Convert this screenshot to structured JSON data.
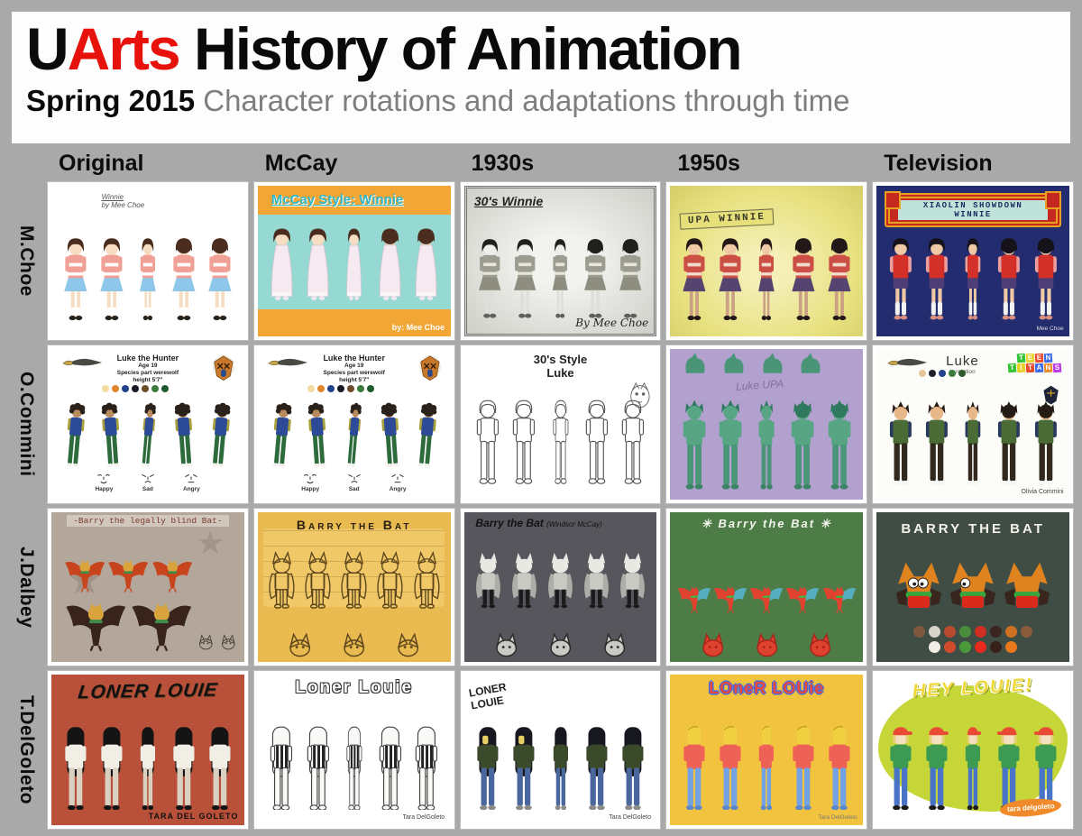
{
  "header": {
    "title_u": "U",
    "title_arts": "Arts",
    "title_rest": " History of Animation",
    "subtitle_term": "Spring 2015",
    "subtitle_rest": " Character rotations and adaptations through time",
    "colors": {
      "accent_red": "#e8120c",
      "subtitle_gray": "#7e7e7e",
      "frame_gray": "#a9a9a9"
    }
  },
  "columns": [
    "Original",
    "McCay",
    "1930s",
    "1950s",
    "Television"
  ],
  "rows": [
    "M.Choe",
    "O.Commini",
    "J.Dalbey",
    "T.DelGoleto"
  ],
  "cells": [
    {
      "id": "choe-original",
      "bg": "#ffffff",
      "layout": "plain",
      "title": {
        "text": "Winnie",
        "style": "hand-tiny",
        "sub": "by Mee Choe"
      },
      "figures": {
        "shape": "person",
        "count": 5,
        "hairStyle": "bob",
        "colors": {
          "hair": "#4a2d1f",
          "skin": "#f6dcc0",
          "top": "#f0a094",
          "stripe": "#ffffff",
          "bottom": "#8ec7ea",
          "bottomType": "skirt",
          "legs": "#f6dcc0",
          "socks": "#ffffff",
          "shoes": "#26221e"
        }
      }
    },
    {
      "id": "choe-mccay",
      "bg": "#f2a636",
      "band": "#96d8d2",
      "layout": "mccayband",
      "title": {
        "text": "McCay Style: Winnie",
        "style": "mccay"
      },
      "signature": {
        "text": "by: Mee Choe",
        "style": "sig-white"
      },
      "figures": {
        "shape": "person",
        "count": 5,
        "hairStyle": "bob",
        "colors": {
          "hair": "#4a2d1f",
          "skin": "#f6dcc0",
          "top": "#f4eaf0",
          "bottomType": "gown",
          "shoes": "#efe7ee"
        }
      }
    },
    {
      "id": "choe-1930s",
      "bg": "#e4e2dc",
      "layout": "vintage",
      "title": {
        "text": "30's Winnie",
        "style": "hand30"
      },
      "signature": {
        "text": "By Mee Choe",
        "style": "sig-script"
      },
      "figures": {
        "shape": "person",
        "count": 5,
        "hairStyle": "bob",
        "colors": {
          "hair": "#20201c",
          "skin": "#efeee8",
          "top": "#9c9c90",
          "stripe": "#e6e6de",
          "bottom": "#8e8e80",
          "bottomType": "skirt",
          "legs": "#dededa",
          "shoes": "#60605a"
        }
      }
    },
    {
      "id": "choe-1950s",
      "bg": "#e8e18a",
      "layout": "upa",
      "banner": {
        "text": "UPA WINNIE",
        "style": "upa"
      },
      "figures": {
        "shape": "person",
        "count": 5,
        "hairStyle": "bob",
        "colors": {
          "hair": "#221818",
          "skin": "#efc9a6",
          "top": "#cc4f45",
          "stripe": "#f2dccc",
          "bottom": "#564470",
          "bottomType": "skirt",
          "legs": "#caa184",
          "shoes": "#221818"
        }
      }
    },
    {
      "id": "choe-tv",
      "bg": "#222c6e",
      "layout": "tvswirl",
      "banner": {
        "text": "XIAOLIN SHOWDOWN WINNIE",
        "style": "xiaolin"
      },
      "signature": {
        "text": "Mee Choe",
        "style": "sig-white-tiny"
      },
      "figures": {
        "shape": "person",
        "count": 5,
        "hairStyle": "bob",
        "colors": {
          "hair": "#16121a",
          "skin": "#efc9a6",
          "top": "#d23028",
          "sleeves": "#eb9f9f",
          "bottom": "#4e3e78",
          "bottomType": "shorts",
          "legs": "#efc9a6",
          "socks": "#f2f2f2",
          "shoes": "#d88f80"
        }
      }
    },
    {
      "id": "commini-original",
      "bg": "#ffffff",
      "layout": "luke",
      "header_block": {
        "title": "Luke the Hunter",
        "lines": [
          "Age 19",
          "Species part werewolf",
          "height 5'7\""
        ]
      },
      "corner_icons": [
        "knife-icon",
        "wolf-mask-icon"
      ],
      "palette": [
        "#f3dca2",
        "#e0862c",
        "#24418c",
        "#181826",
        "#6f4c2c",
        "#3d7c3d",
        "#1e5a2e"
      ],
      "palette_pos": "pal-luke",
      "faces": {
        "labels": [
          "Happy",
          "Sad",
          "Angry"
        ]
      },
      "figures": {
        "shape": "person",
        "count": 5,
        "hairStyle": "curly",
        "pose": "crouch",
        "colors": {
          "hair": "#2a211a",
          "skin": "#b98a5e",
          "top": "#2c4a96",
          "sleeves": "#a8a03c",
          "bottom": "#2e6b3c",
          "bottomType": "pants",
          "shoes": "#f2f2ee"
        }
      }
    },
    {
      "id": "commini-mccay",
      "bg": "#ffffff",
      "layout": "luke",
      "header_block": {
        "title": "Luke the Hunter",
        "lines": [
          "Age 19",
          "Species part werewolf",
          "height 5'7\""
        ]
      },
      "corner_icons": [
        "knife-icon",
        "wolf-mask-icon"
      ],
      "palette": [
        "#f3dca2",
        "#e0862c",
        "#24418c",
        "#181826",
        "#6f4c2c",
        "#3d7c3d",
        "#1e5a2e"
      ],
      "palette_pos": "pal-luke",
      "faces": {
        "labels": [
          "Happy",
          "Sad",
          "Angry"
        ]
      },
      "figures": {
        "shape": "person",
        "count": 5,
        "hairStyle": "curly",
        "pose": "crouch",
        "colors": {
          "hair": "#2a211a",
          "skin": "#b98a5e",
          "top": "#2c4a96",
          "sleeves": "#a8a03c",
          "bottom": "#2e6b3c",
          "bottomType": "pants",
          "shoes": "#f2f2ee"
        }
      }
    },
    {
      "id": "commini-1930s",
      "bg": "#ffffff",
      "layout": "luke30",
      "title": {
        "text": "30's Style",
        "text2": "Luke",
        "style": "center-bold"
      },
      "side_sketch": true,
      "figures": {
        "shape": "person",
        "count": 5,
        "hairStyle": "shaggy",
        "outline": true,
        "colors": {
          "hair": "#ffffff",
          "skin": "#ffffff",
          "top": "#ffffff",
          "bottom": "#ffffff",
          "bottomType": "pants",
          "shoes": "#ffffff",
          "stroke": "#555555"
        }
      }
    },
    {
      "id": "commini-1950s",
      "bg": "#b2a0ce",
      "layout": "water",
      "caption": {
        "text": "Luke UPA",
        "style": "faint"
      },
      "top_heads": {
        "count": 4,
        "color": "#4a9578"
      },
      "figures": {
        "shape": "person",
        "count": 5,
        "hairStyle": "spiky",
        "colors": {
          "hair": "#2f7a5e",
          "skin": "#57a583",
          "top": "#57a583",
          "bottom": "#4a9578",
          "bottomType": "pants",
          "shoes": "#3d8468"
        }
      }
    },
    {
      "id": "commini-tv",
      "bg": "#fcfcf9",
      "layout": "tvluke ruled",
      "title": {
        "text": "Luke",
        "sub": "tv rotation",
        "style": "tvluke"
      },
      "corner_icons": [
        "knife-icon"
      ],
      "logo": {
        "name": "teen-titans-logo",
        "lines": [
          "TEEN",
          "TITANS"
        ],
        "tile_colors": [
          "#35c435",
          "#e8d22a",
          "#e84a2a",
          "#3a6ae8",
          "#e88a2a",
          "#b83ae8"
        ]
      },
      "mask_icon": true,
      "palette": [
        "#e8c49a",
        "#1e1e2e",
        "#24418c",
        "#3d7c3d",
        "#2e5a2e"
      ],
      "palette_pos": "pal-tvluke",
      "signature": {
        "text": "Olivia Commini",
        "style": "sig-plain"
      },
      "figures": {
        "shape": "person",
        "count": 5,
        "hairStyle": "spiky",
        "colors": {
          "hair": "#241c14",
          "skin": "#e8b88a",
          "top": "#4a6b35",
          "sleeves": "#2a3a5e",
          "bottom": "#32281e",
          "bottomType": "pants",
          "shoes": "#f6f6f2"
        }
      }
    },
    {
      "id": "dalbey-original",
      "bg": "#b3a69b",
      "layout": "barry1 stars",
      "title": {
        "text": "-Barry the legally blind Bat-",
        "style": "typew"
      },
      "figures": {
        "shape": "bat-fly",
        "count": 3,
        "colors": {
          "wing": "#c8441c",
          "head": "#d9a43c",
          "scarf": "#3d8c4c",
          "body": "#c8441c"
        }
      },
      "figures2": {
        "shape": "bat-fly",
        "count": 2,
        "colors": {
          "wing": "#38241c",
          "head": "#d9a43c",
          "scarf": "#3d8c4c",
          "body": "#38241c"
        }
      },
      "sketch_heads": {
        "count": 2,
        "stroke": "#4a4038"
      }
    },
    {
      "id": "dalbey-mccay",
      "bg": "#e9ba50",
      "layout": "batmid aged",
      "title": {
        "text": "Barry the Bat",
        "style": "handcaps"
      },
      "figures": {
        "shape": "bat-stand",
        "count": 5,
        "outline": true,
        "colors": {
          "stroke": "#5c451c"
        }
      },
      "sub": {
        "shape": "bat-head",
        "count": 3,
        "colors": {
          "fill": "none",
          "stroke": "#5c451c"
        }
      }
    },
    {
      "id": "dalbey-1930s",
      "bg": "#56565c",
      "layout": "batmid whiteframe",
      "title": {
        "text": "Barry the Bat",
        "paren": "(Windsor McCay)",
        "style": "handdark"
      },
      "figures": {
        "shape": "bat-stand",
        "count": 5,
        "colors": {
          "head": "#e9e9e4",
          "body": "#cacac4",
          "pants": "#1b1b1b",
          "wing": "#aeaea8",
          "stroke": "#222222"
        }
      },
      "sub": {
        "shape": "bat-head",
        "count": 3,
        "colors": {
          "fill": "#cacac4",
          "stroke": "#2a2a2a"
        }
      }
    },
    {
      "id": "dalbey-1950s",
      "bg": "#4d7c46",
      "layout": "batmid green",
      "title": {
        "text": "✳  Barry the Bat  ✳",
        "style": "retro"
      },
      "figures": {
        "shape": "bat-fly",
        "count": 5,
        "colors": {
          "wing": "#e04230",
          "head": "#e04230",
          "scarf": "#38bc3c",
          "body": "#e04230",
          "membrane": "#55aec0"
        }
      },
      "sub": {
        "shape": "bat-head",
        "count": 3,
        "colors": {
          "fill": "#e04230",
          "stroke": "#a82418"
        }
      }
    },
    {
      "id": "dalbey-tv",
      "bg": "#404d44",
      "layout": "tvbarry ruleddark",
      "title": {
        "text": "BARRY THE BAT",
        "style": "tvbarry"
      },
      "figures": {
        "shape": "bat-bust",
        "count": 3,
        "colors": {
          "ears": "#df831f",
          "scarf": "#3aa53c",
          "body": "#d92a1c",
          "wing": "#38261e"
        }
      },
      "palette": [
        "#8a5c3c",
        "#f2ede4",
        "#d04a2c",
        "#4a9a3c",
        "#e82a1c",
        "#38201a",
        "#e8791c"
      ],
      "palette_rows": 2,
      "palette_pos": "pal-barry"
    },
    {
      "id": "delgoleto-original",
      "bg": "#b8503a",
      "layout": "brick",
      "title": {
        "text": "LONER LOUIE",
        "style": "graffiti"
      },
      "signature": {
        "text": "TARA DEL GOLETO",
        "style": "sig-marker"
      },
      "figures": {
        "shape": "person",
        "count": 5,
        "hairStyle": "longcover",
        "colors": {
          "hair": "#141414",
          "skin": "#e8d0b0",
          "top": "#f1eee6",
          "bottom": "#d9d0c0",
          "bottomType": "pants",
          "shoes": "#141414"
        }
      }
    },
    {
      "id": "delgoleto-mccay",
      "bg": "#ffffff",
      "layout": "plain",
      "title": {
        "text": "Loner Louie",
        "style": "bubble"
      },
      "signature": {
        "text": "Tara DelGoleto",
        "style": "sig-plain"
      },
      "figures": {
        "shape": "person",
        "count": 5,
        "hairStyle": "longcover",
        "outline": true,
        "colors": {
          "hair": "#f8f8f6",
          "skin": "#ffffff",
          "top": "stripes",
          "bottom": "#fbfbf8",
          "bottomType": "pants",
          "shoes": "#f8f8f6",
          "stroke": "#444444"
        }
      }
    },
    {
      "id": "delgoleto-1930s",
      "bg": "#ffffff",
      "layout": "plain",
      "caption_corner": {
        "text": "LONER\nLOUIE",
        "style": "handcorner"
      },
      "signature": {
        "text": "Tara DelGoleto",
        "style": "sig-plain"
      },
      "figures": {
        "shape": "person",
        "count": 5,
        "hairStyle": "longcover",
        "face_peek": "#e8cf63",
        "colors": {
          "hair": "#17171f",
          "skin": "#e8cf63",
          "top": "#3c4a2c",
          "bottom": "#49679c",
          "bottomType": "pants",
          "shoes": "#8c8c86"
        }
      }
    },
    {
      "id": "delgoleto-1950s",
      "bg": "#f1c33f",
      "layout": "plain",
      "title": {
        "text": "LOneR LOUie",
        "style": "ransom"
      },
      "signature": {
        "text": "Tara DelGoleto",
        "style": "sig-plain-tiny"
      },
      "figures": {
        "shape": "person",
        "count": 5,
        "hairStyle": "tallhead",
        "colors": {
          "hair": "#f0d040",
          "skin": "#f0d040",
          "top": "#ee6156",
          "bottom": "#73a2e4",
          "bottomType": "pants",
          "shoes": "#5a88cc"
        }
      }
    },
    {
      "id": "delgoleto-tv",
      "bg": "#ffffff",
      "layout": "splat",
      "title": {
        "text": "HEY LOUIE!",
        "style": "hey"
      },
      "splat_sig": {
        "text": "tara delgoleto",
        "bg": "#f08a2a"
      },
      "figures": {
        "shape": "person",
        "count": 5,
        "hairStyle": "cap",
        "cap": "#e84a34",
        "colors": {
          "hair": "#e8d080",
          "skin": "#f4e0c0",
          "top": "#3d9a53",
          "bottom": "#4a74c8",
          "bottomType": "pants",
          "shoes": "#1c1c1c"
        }
      }
    }
  ]
}
